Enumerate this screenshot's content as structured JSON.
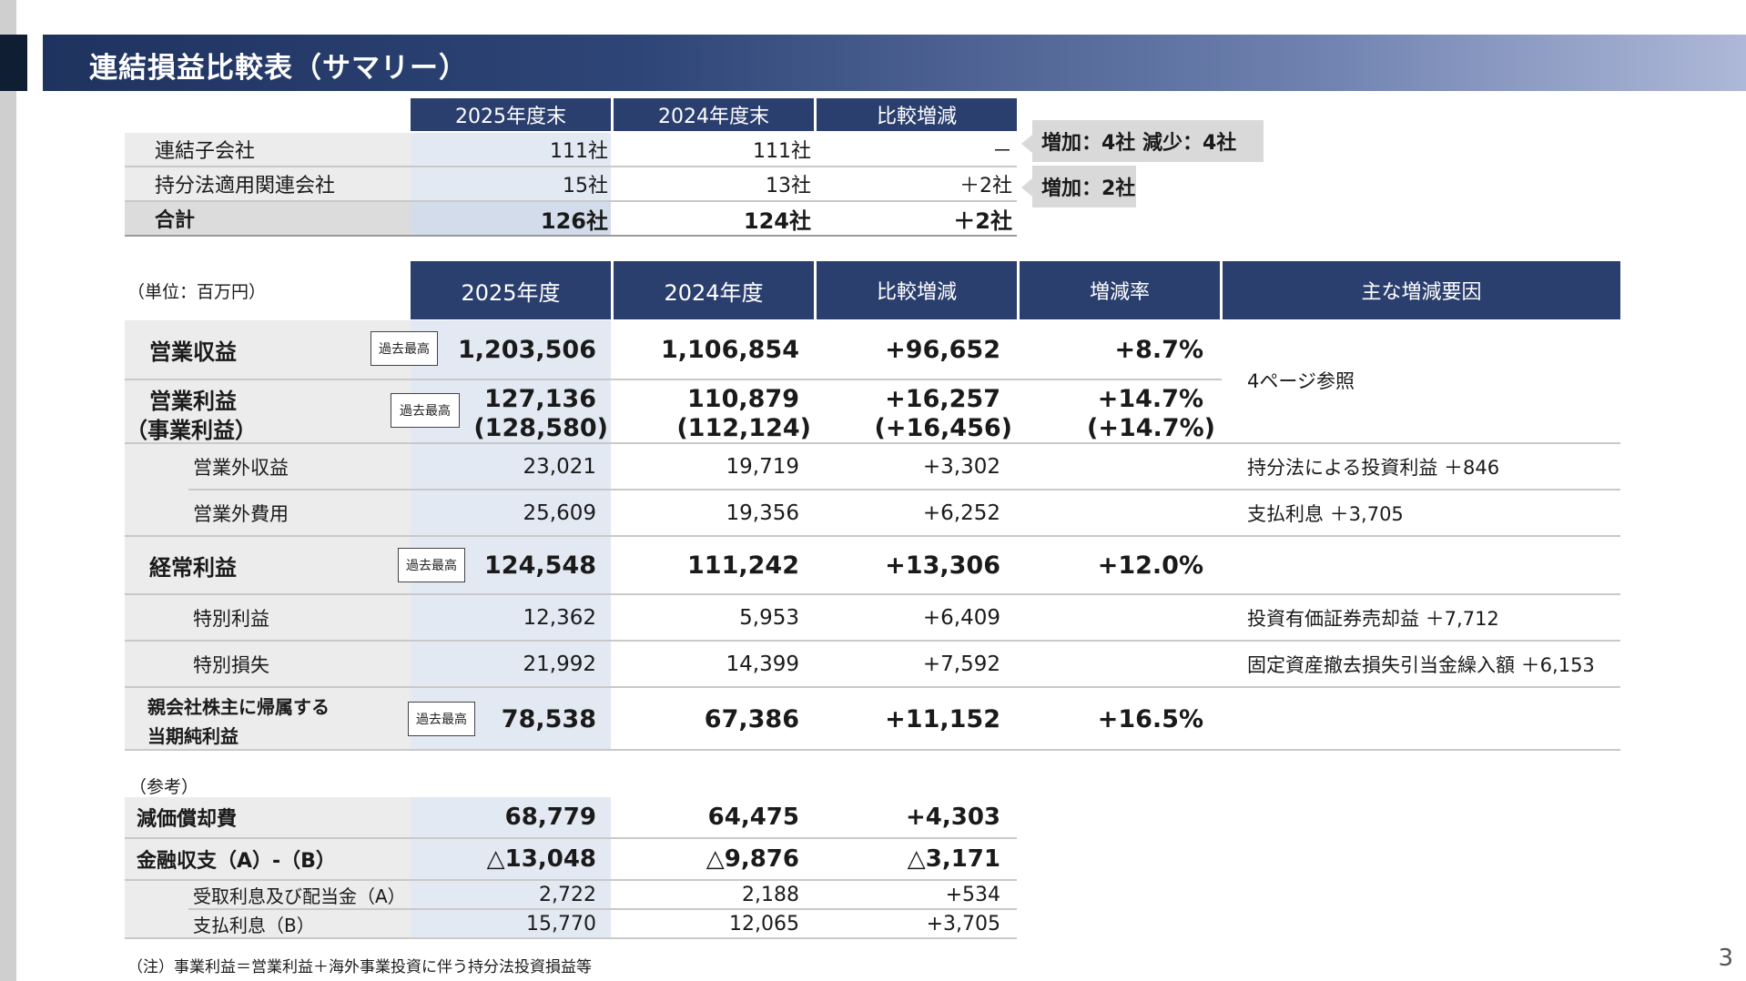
{
  "title": "連結損益比較表（サマリー）",
  "page_number": "3",
  "company_table": {
    "headers": [
      "2025年度末",
      "2024年度末",
      "比較増減"
    ],
    "rows": [
      {
        "label": "連結子会社",
        "v2025": "111社",
        "v2024": "111社",
        "diff": "－"
      },
      {
        "label": "持分法適用関連会社",
        "v2025": "15社",
        "v2024": "13社",
        "diff": "＋2社"
      },
      {
        "label": "合計",
        "v2025": "126社",
        "v2024": "124社",
        "diff": "＋2社"
      }
    ],
    "notes": [
      "増加：4社  減少：4社",
      "増加：2社"
    ]
  },
  "unit": "（単位：百万円）",
  "main_table": {
    "headers": [
      "2025年度",
      "2024年度",
      "比較増減",
      "増減率",
      "主な増減要因"
    ],
    "record_label": "過去最高",
    "page_ref": "4ページ参照",
    "rows": [
      {
        "label": "営業収益",
        "v2025": "1,203,506",
        "v2024": "1,106,854",
        "diff": "+96,652",
        "rate": "+8.7%",
        "factor": ""
      },
      {
        "label": "営業利益",
        "label2": "（事業利益）",
        "v2025": "127,136",
        "v2025b": "(128,580)",
        "v2024": "110,879",
        "v2024b": "(112,124)",
        "diff": "+16,257",
        "diffb": "(+16,456)",
        "rate": "+14.7%",
        "rateb": "(+14.7%)"
      },
      {
        "label": "営業外収益",
        "v2025": "23,021",
        "v2024": "19,719",
        "diff": "+3,302",
        "rate": "",
        "factor": "持分法による投資利益 ＋846"
      },
      {
        "label": "営業外費用",
        "v2025": "25,609",
        "v2024": "19,356",
        "diff": "+6,252",
        "rate": "",
        "factor": "支払利息 ＋3,705"
      },
      {
        "label": "経常利益",
        "v2025": "124,548",
        "v2024": "111,242",
        "diff": "+13,306",
        "rate": "+12.0%",
        "factor": ""
      },
      {
        "label": "特別利益",
        "v2025": "12,362",
        "v2024": "5,953",
        "diff": "+6,409",
        "rate": "",
        "factor": "投資有価証券売却益 ＋7,712"
      },
      {
        "label": "特別損失",
        "v2025": "21,992",
        "v2024": "14,399",
        "diff": "+7,592",
        "rate": "",
        "factor": "固定資産撤去損失引当金繰入額 ＋6,153"
      },
      {
        "label": "親会社株主に帰属する",
        "label2": "当期純利益",
        "v2025": "78,538",
        "v2024": "67,386",
        "diff": "+11,152",
        "rate": "+16.5%",
        "factor": ""
      }
    ]
  },
  "reference": {
    "label": "（参考）",
    "rows": [
      {
        "label": "減価償却費",
        "v2025": "68,779",
        "v2024": "64,475",
        "diff": "+4,303"
      },
      {
        "label": "金融収支（A）-（B）",
        "v2025": "△13,048",
        "v2024": "△9,876",
        "diff": "△3,171"
      },
      {
        "label": "受取利息及び配当金（A）",
        "v2025": "2,722",
        "v2024": "2,188",
        "diff": "+534"
      },
      {
        "label": "支払利息（B）",
        "v2025": "15,770",
        "v2024": "12,065",
        "diff": "+3,705"
      }
    ]
  },
  "footnote": "（注）事業利益＝営業利益＋海外事業投資に伴う持分法投資損益等",
  "colors": {
    "header": "#2b3f6e",
    "title_bar_start": "#1f335f",
    "title_bar_end": "#aeb8d8",
    "label_bg": "#ececec",
    "highlight_bg": "#e3e9f2"
  }
}
